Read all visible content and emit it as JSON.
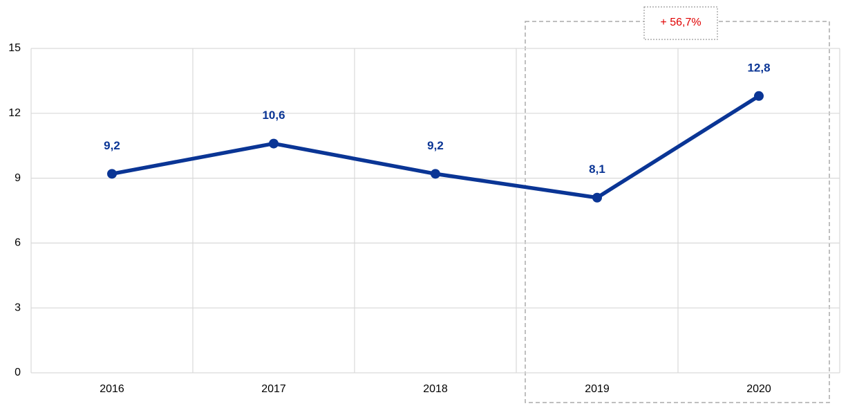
{
  "chart_data": {
    "type": "line",
    "categories": [
      "2016",
      "2017",
      "2018",
      "2019",
      "2020"
    ],
    "series": [
      {
        "color": "#0a3595",
        "values": [
          9.2,
          10.6,
          9.2,
          8.1,
          12.8
        ],
        "value_labels": [
          "9,2",
          "10,6",
          "9,2",
          "8,1",
          "12,8"
        ]
      }
    ],
    "ylim": [
      0,
      15
    ],
    "yticks": [
      0,
      3,
      6,
      9,
      12,
      15
    ],
    "grid": true,
    "annotation": "+ 56,7%"
  }
}
